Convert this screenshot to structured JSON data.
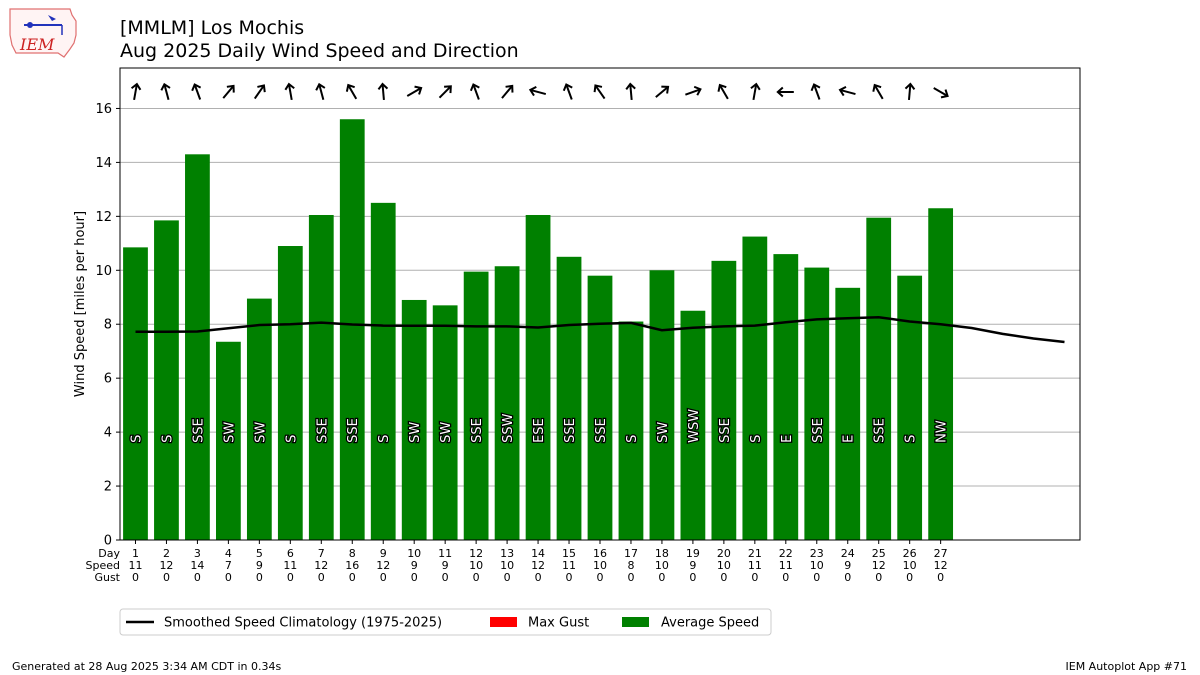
{
  "header": {
    "title_line1": "[MMLM] Los Mochis",
    "title_line2": "Aug 2025 Daily Wind Speed and Direction",
    "logo_text": "IEM"
  },
  "footer": {
    "generated": "Generated at 28 Aug 2025 3:34 AM CDT in 0.34s",
    "app": "IEM Autoplot App #71"
  },
  "chart_data": {
    "type": "bar",
    "ylabel": "Wind Speed [miles per hour]",
    "ylim": [
      0,
      17.5
    ],
    "yticks": [
      0,
      2,
      4,
      6,
      8,
      10,
      12,
      14,
      16
    ],
    "grid": true,
    "row_labels": [
      "Day",
      "Speed",
      "Gust"
    ],
    "days": [
      1,
      2,
      3,
      4,
      5,
      6,
      7,
      8,
      9,
      10,
      11,
      12,
      13,
      14,
      15,
      16,
      17,
      18,
      19,
      20,
      21,
      22,
      23,
      24,
      25,
      26,
      27
    ],
    "day_labels": [
      "1",
      "2",
      "3",
      "4",
      "5",
      "6",
      "7",
      "8",
      "9",
      "10",
      "11",
      "12",
      "13",
      "14",
      "15",
      "16",
      "17",
      "18",
      "19",
      "20",
      "21",
      "22",
      "23",
      "24",
      "25",
      "26",
      "27"
    ],
    "speed_labels": [
      "11",
      "12",
      "14",
      "7",
      "9",
      "11",
      "12",
      "16",
      "12",
      "9",
      "9",
      "10",
      "10",
      "12",
      "11",
      "10",
      "8",
      "10",
      "9",
      "10",
      "11",
      "11",
      "10",
      "9",
      "12",
      "10",
      "12"
    ],
    "gust_labels": [
      "0",
      "0",
      "0",
      "0",
      "0",
      "0",
      "0",
      "0",
      "0",
      "0",
      "0",
      "0",
      "0",
      "0",
      "0",
      "0",
      "0",
      "0",
      "0",
      "0",
      "0",
      "0",
      "0",
      "0",
      "0",
      "0",
      "0"
    ],
    "avg_speed": [
      10.85,
      11.85,
      14.3,
      7.35,
      8.95,
      10.9,
      12.05,
      15.6,
      12.5,
      8.9,
      8.7,
      9.95,
      10.15,
      12.05,
      10.5,
      9.8,
      8.1,
      10.0,
      8.5,
      10.35,
      11.25,
      10.6,
      10.1,
      9.35,
      11.95,
      9.8,
      12.3
    ],
    "directions": [
      "S",
      "S",
      "SSE",
      "SW",
      "SW",
      "S",
      "SSE",
      "SSE",
      "S",
      "SW",
      "SW",
      "SSE",
      "SSW",
      "ESE",
      "SSE",
      "SSE",
      "S",
      "SW",
      "WSW",
      "SSE",
      "S",
      "E",
      "SSE",
      "E",
      "SSE",
      "S",
      "NW"
    ],
    "arrow_angles": [
      10,
      -15,
      -20,
      40,
      35,
      -10,
      -15,
      -30,
      -5,
      60,
      45,
      -20,
      40,
      -75,
      -20,
      -35,
      -5,
      50,
      70,
      -30,
      10,
      -90,
      -20,
      -75,
      -30,
      5,
      120
    ],
    "max_gust": [
      0,
      0,
      0,
      0,
      0,
      0,
      0,
      0,
      0,
      0,
      0,
      0,
      0,
      0,
      0,
      0,
      0,
      0,
      0,
      0,
      0,
      0,
      0,
      0,
      0,
      0,
      0
    ],
    "climatology": {
      "name": "Smoothed Speed Climatology (1975-2025)",
      "x": [
        1,
        2,
        3,
        4,
        5,
        6,
        7,
        8,
        9,
        10,
        11,
        12,
        13,
        14,
        15,
        16,
        17,
        18,
        19,
        20,
        21,
        22,
        23,
        24,
        25,
        26,
        27,
        28,
        29,
        30,
        31
      ],
      "values": [
        7.72,
        7.72,
        7.73,
        7.85,
        7.97,
        8.0,
        8.06,
        7.99,
        7.95,
        7.94,
        7.94,
        7.92,
        7.92,
        7.88,
        7.97,
        8.02,
        8.05,
        7.78,
        7.87,
        7.92,
        7.95,
        8.07,
        8.18,
        8.22,
        8.26,
        8.1,
        8.0,
        7.86,
        7.64,
        7.47,
        7.34
      ]
    },
    "legend": [
      {
        "label": "Smoothed Speed Climatology (1975-2025)",
        "type": "line",
        "color": "#000000"
      },
      {
        "label": "Max Gust",
        "type": "patch",
        "color": "#ff0000"
      },
      {
        "label": "Average Speed",
        "type": "patch",
        "color": "#008000"
      }
    ],
    "legend_position": "bottom",
    "colors": {
      "bar": "#008000",
      "gust": "#ff0000",
      "line": "#000000",
      "grid": "#b0b0b0"
    }
  }
}
